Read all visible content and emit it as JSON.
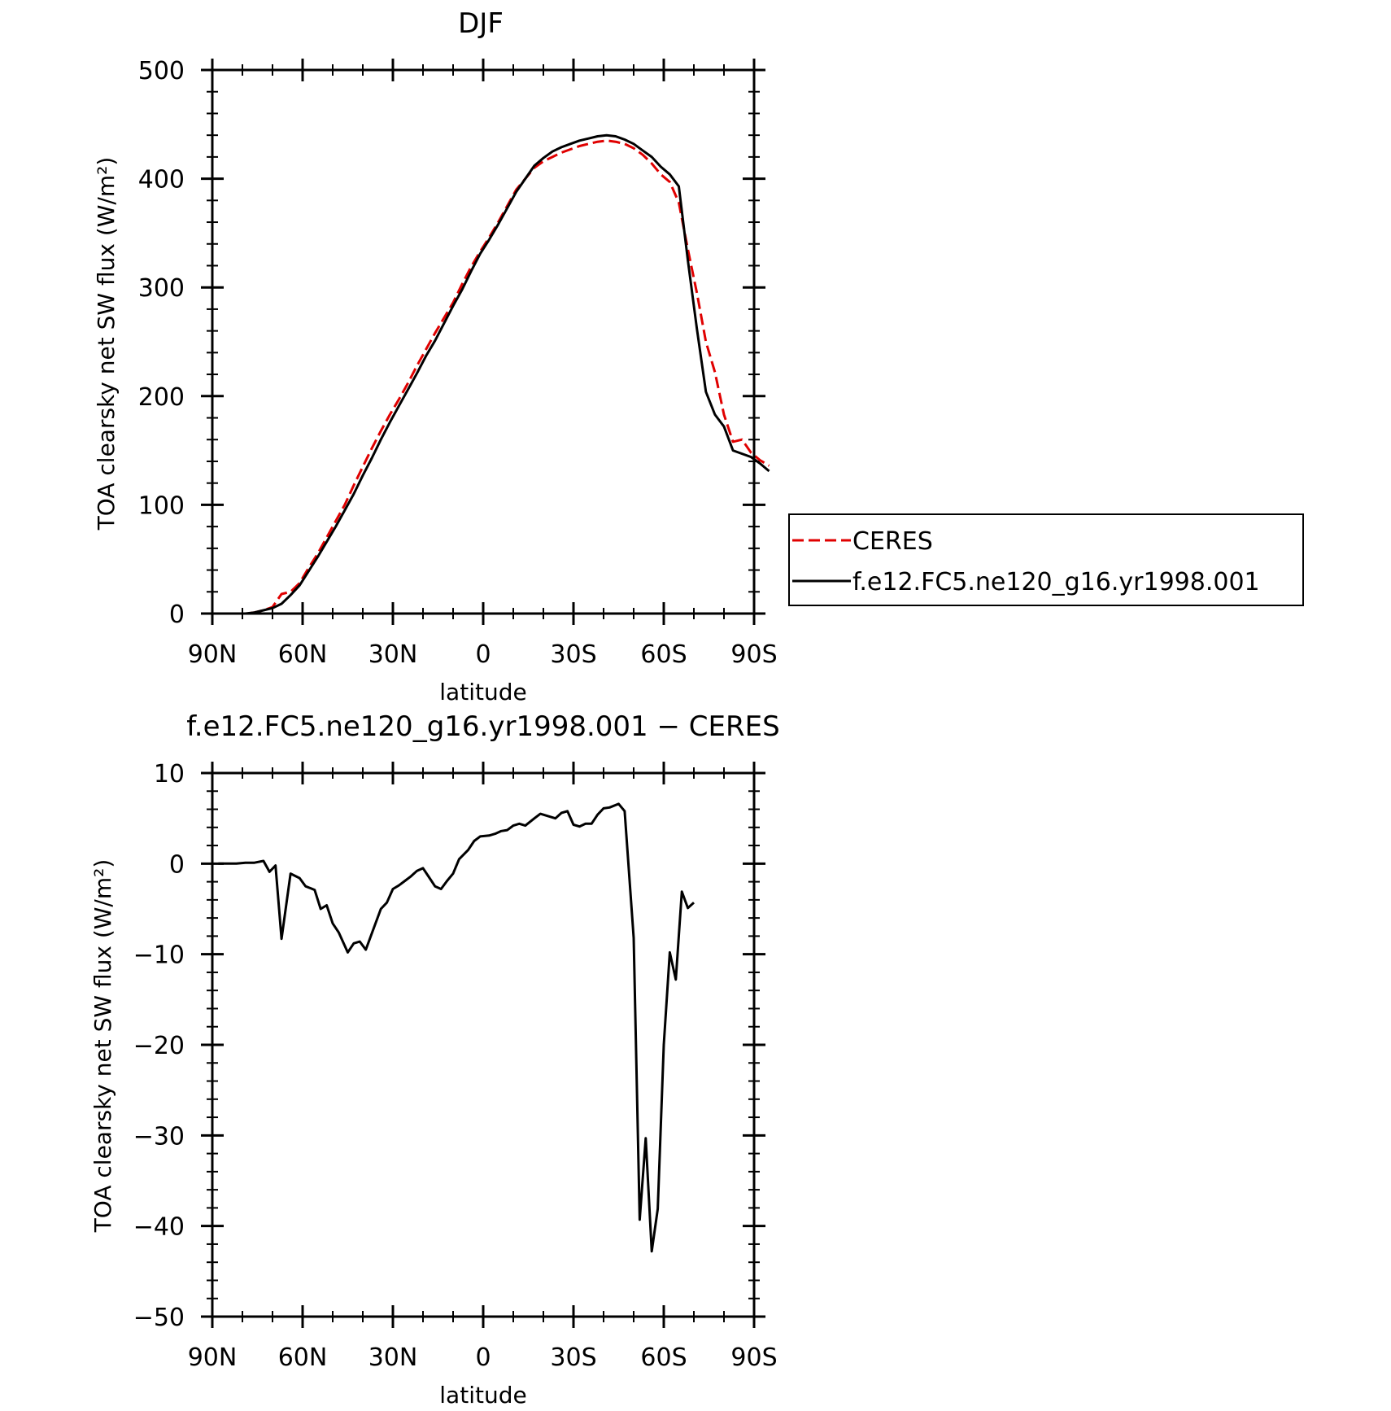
{
  "chart_data": [
    {
      "type": "line",
      "title": "DJF",
      "xlabel": "latitude",
      "ylabel": "TOA clearsky net SW flux (W/m²)",
      "xlim": [
        90,
        -90
      ],
      "ylim": [
        0,
        500
      ],
      "x_ticks": [
        90,
        60,
        30,
        0,
        -30,
        -60,
        -90
      ],
      "x_tick_labels": [
        "90N",
        "60N",
        "30N",
        "0",
        "30S",
        "60S",
        "90S"
      ],
      "y_ticks": [
        0,
        100,
        200,
        300,
        400,
        500
      ],
      "y_tick_labels": [
        "0",
        "100",
        "200",
        "300",
        "400",
        "500"
      ],
      "legend": {
        "position": "right"
      },
      "series": [
        {
          "name": "CERES",
          "color": "#e00000",
          "dash": "dashed",
          "points": [
            [
              88,
              0
            ],
            [
              85,
              0
            ],
            [
              82,
              0
            ],
            [
              79,
              0
            ],
            [
              76,
              1
            ],
            [
              73,
              3
            ],
            [
              70,
              6
            ],
            [
              67,
              18
            ],
            [
              64,
              20
            ],
            [
              61,
              28
            ],
            [
              58,
              42
            ],
            [
              55,
              55
            ],
            [
              52,
              70
            ],
            [
              49,
              85
            ],
            [
              46,
              100
            ],
            [
              43,
              118
            ],
            [
              40,
              135
            ],
            [
              37,
              152
            ],
            [
              34,
              168
            ],
            [
              31,
              183
            ],
            [
              28,
              197
            ],
            [
              25,
              212
            ],
            [
              22,
              228
            ],
            [
              19,
              243
            ],
            [
              16,
              258
            ],
            [
              13,
              272
            ],
            [
              10,
              286
            ],
            [
              7,
              303
            ],
            [
              4,
              319
            ],
            [
              1,
              333
            ],
            [
              -2,
              346
            ],
            [
              -5,
              360
            ],
            [
              -8,
              375
            ],
            [
              -11,
              390
            ],
            [
              -14,
              400
            ],
            [
              -17,
              410
            ],
            [
              -20,
              416
            ],
            [
              -23,
              420
            ],
            [
              -26,
              424
            ],
            [
              -29,
              427
            ],
            [
              -32,
              430
            ],
            [
              -35,
              432
            ],
            [
              -38,
              434
            ],
            [
              -41,
              435
            ],
            [
              -44,
              434
            ],
            [
              -47,
              432
            ],
            [
              -50,
              428
            ],
            [
              -53,
              422
            ],
            [
              -56,
              414
            ],
            [
              -59,
              404
            ],
            [
              -62,
              397
            ],
            [
              -65,
              378
            ],
            [
              -68,
              335
            ],
            [
              -71,
              295
            ],
            [
              -74,
              250
            ],
            [
              -77,
              222
            ],
            [
              -80,
              183
            ],
            [
              -83,
              158
            ],
            [
              -86,
              160
            ],
            [
              -89,
              148
            ],
            [
              -92,
              141
            ],
            [
              -95,
              136
            ]
          ]
        },
        {
          "name": "f.e12.FC5.ne120_g16.yr1998.001",
          "color": "#000000",
          "dash": "solid",
          "points": [
            [
              88,
              0
            ],
            [
              85,
              0
            ],
            [
              82,
              0
            ],
            [
              79,
              0
            ],
            [
              76,
              1
            ],
            [
              73,
              3
            ],
            [
              70,
              5
            ],
            [
              67,
              9
            ],
            [
              64,
              17
            ],
            [
              61,
              26
            ],
            [
              58,
              39
            ],
            [
              55,
              52
            ],
            [
              52,
              66
            ],
            [
              49,
              80
            ],
            [
              46,
              95
            ],
            [
              43,
              110
            ],
            [
              40,
              127
            ],
            [
              37,
              143
            ],
            [
              34,
              160
            ],
            [
              31,
              176
            ],
            [
              28,
              191
            ],
            [
              25,
              206
            ],
            [
              22,
              221
            ],
            [
              19,
              237
            ],
            [
              16,
              251
            ],
            [
              13,
              267
            ],
            [
              10,
              283
            ],
            [
              7,
              298
            ],
            [
              4,
              315
            ],
            [
              1,
              331
            ],
            [
              -2,
              344
            ],
            [
              -5,
              358
            ],
            [
              -8,
              373
            ],
            [
              -11,
              388
            ],
            [
              -14,
              400
            ],
            [
              -17,
              412
            ],
            [
              -20,
              419
            ],
            [
              -23,
              425
            ],
            [
              -26,
              429
            ],
            [
              -29,
              432
            ],
            [
              -32,
              435
            ],
            [
              -35,
              437
            ],
            [
              -38,
              439
            ],
            [
              -41,
              440
            ],
            [
              -44,
              439
            ],
            [
              -47,
              436
            ],
            [
              -50,
              432
            ],
            [
              -53,
              426
            ],
            [
              -56,
              420
            ],
            [
              -59,
              411
            ],
            [
              -62,
              404
            ],
            [
              -65,
              393
            ],
            [
              -68,
              325
            ],
            [
              -71,
              262
            ],
            [
              -74,
              204
            ],
            [
              -77,
              183
            ],
            [
              -80,
              172
            ],
            [
              -83,
              150
            ],
            [
              -86,
              147
            ],
            [
              -89,
              144
            ],
            [
              -92,
              138
            ],
            [
              -95,
              131
            ]
          ]
        }
      ]
    },
    {
      "type": "line",
      "title": "f.e12.FC5.ne120_g16.yr1998.001 − CERES",
      "xlabel": "latitude",
      "ylabel": "TOA clearsky net SW flux (W/m²)",
      "xlim": [
        90,
        -90
      ],
      "ylim": [
        -50,
        10
      ],
      "x_ticks": [
        90,
        60,
        30,
        0,
        -30,
        -60,
        -90
      ],
      "x_tick_labels": [
        "90N",
        "60N",
        "30N",
        "0",
        "30S",
        "60S",
        "90S"
      ],
      "y_ticks": [
        10,
        0,
        -10,
        -20,
        -30,
        -40,
        -50
      ],
      "y_tick_labels": [
        "10",
        "0",
        "−10",
        "−20",
        "−30",
        "−40",
        "−50"
      ],
      "series": [
        {
          "name": "",
          "color": "#000000",
          "dash": "solid",
          "points": [
            [
              88,
              0
            ],
            [
              85,
              0
            ],
            [
              82,
              0
            ],
            [
              79,
              0.1
            ],
            [
              76,
              0.1
            ],
            [
              73,
              0.3
            ],
            [
              71,
              -0.9
            ],
            [
              69,
              -0.2
            ],
            [
              67,
              -8.3
            ],
            [
              64,
              -1.1
            ],
            [
              61,
              -1.6
            ],
            [
              59,
              -2.5
            ],
            [
              56,
              -2.9
            ],
            [
              54,
              -5.0
            ],
            [
              52,
              -4.6
            ],
            [
              50,
              -6.6
            ],
            [
              48,
              -7.6
            ],
            [
              45,
              -9.8
            ],
            [
              43,
              -8.8
            ],
            [
              41,
              -8.6
            ],
            [
              39,
              -9.5
            ],
            [
              36,
              -6.8
            ],
            [
              34,
              -5.0
            ],
            [
              32,
              -4.3
            ],
            [
              30,
              -2.8
            ],
            [
              28,
              -2.4
            ],
            [
              26,
              -1.9
            ],
            [
              24,
              -1.4
            ],
            [
              22,
              -0.8
            ],
            [
              20,
              -0.5
            ],
            [
              18,
              -1.5
            ],
            [
              16,
              -2.5
            ],
            [
              14,
              -2.8
            ],
            [
              12,
              -1.9
            ],
            [
              10,
              -1.1
            ],
            [
              8,
              0.5
            ],
            [
              5,
              1.5
            ],
            [
              3,
              2.5
            ],
            [
              1,
              3.0
            ],
            [
              -2,
              3.1
            ],
            [
              -4,
              3.3
            ],
            [
              -6,
              3.6
            ],
            [
              -8,
              3.7
            ],
            [
              -10,
              4.2
            ],
            [
              -12,
              4.4
            ],
            [
              -14,
              4.2
            ],
            [
              -17,
              5.0
            ],
            [
              -19,
              5.5
            ],
            [
              -22,
              5.2
            ],
            [
              -24,
              5.0
            ],
            [
              -26,
              5.6
            ],
            [
              -28,
              5.8
            ],
            [
              -30,
              4.3
            ],
            [
              -32,
              4.1
            ],
            [
              -34,
              4.4
            ],
            [
              -36,
              4.4
            ],
            [
              -38,
              5.4
            ],
            [
              -40,
              6.1
            ],
            [
              -42,
              6.2
            ],
            [
              -45,
              6.6
            ],
            [
              -47,
              5.8
            ],
            [
              -50,
              -8.2
            ],
            [
              -52,
              -39.3
            ],
            [
              -54,
              -30.3
            ],
            [
              -56,
              -42.8
            ],
            [
              -58,
              -38.1
            ],
            [
              -60,
              -20.0
            ],
            [
              -62,
              -9.8
            ],
            [
              -64,
              -12.8
            ],
            [
              -66,
              -3.1
            ],
            [
              -68,
              -4.9
            ],
            [
              -70,
              -4.3
            ]
          ]
        }
      ]
    }
  ]
}
